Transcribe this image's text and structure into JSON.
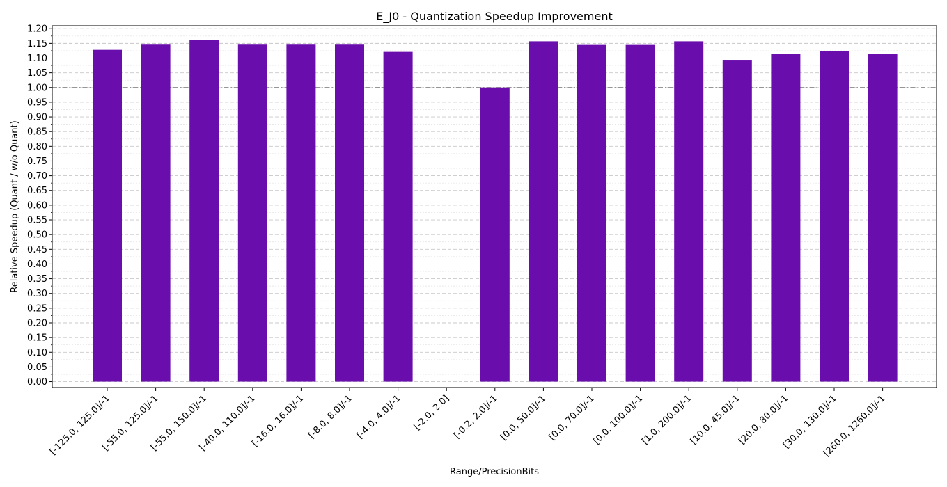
{
  "chart_data": {
    "type": "bar",
    "title": "E_J0 - Quantization Speedup Improvement",
    "xlabel": "Range/PrecisionBits",
    "ylabel": "Relative Speedup (Quant / w/o Quant)",
    "ylim": [
      -0.02,
      1.21
    ],
    "yticks": [
      "0.00",
      "0.05",
      "0.10",
      "0.15",
      "0.20",
      "0.25",
      "0.30",
      "0.35",
      "0.40",
      "0.45",
      "0.50",
      "0.55",
      "0.60",
      "0.65",
      "0.70",
      "0.75",
      "0.80",
      "0.85",
      "0.90",
      "0.95",
      "1.00",
      "1.05",
      "1.10",
      "1.15",
      "1.20"
    ],
    "categories": [
      "[-125.0, 125.0]/-1",
      "[-55.0, 125.0]/-1",
      "[-55.0, 150.0]/-1",
      "[-40.0, 110.0]/-1",
      "[-16.0, 16.0]/-1",
      "[-8.0, 8.0]/-1",
      "[-4.0, 4.0]/-1",
      "[-2.0, 2.0]",
      "[-0.2, 2.0]/-1",
      "[0.0, 50.0]/-1",
      "[0.0, 70.0]/-1",
      "[0.0, 100.0]/-1",
      "[1.0, 200.0]/-1",
      "[10.0, 45.0]/-1",
      "[20.0, 80.0]/-1",
      "[30.0, 130.0]/-1",
      "[260.0, 1260.0]/-1"
    ],
    "values": [
      1.128,
      1.148,
      1.162,
      1.148,
      1.148,
      1.148,
      1.121,
      null,
      1.0,
      1.157,
      1.147,
      1.147,
      1.157,
      1.094,
      1.113,
      1.123,
      1.113
    ],
    "reference_line": 1.0,
    "grid": true,
    "legend": "none",
    "colors": {
      "bar": "#6a0dad",
      "reference_line": "#888888",
      "grid_major": "#c8c8c8",
      "grid_minor": "#e0e0e0"
    }
  }
}
